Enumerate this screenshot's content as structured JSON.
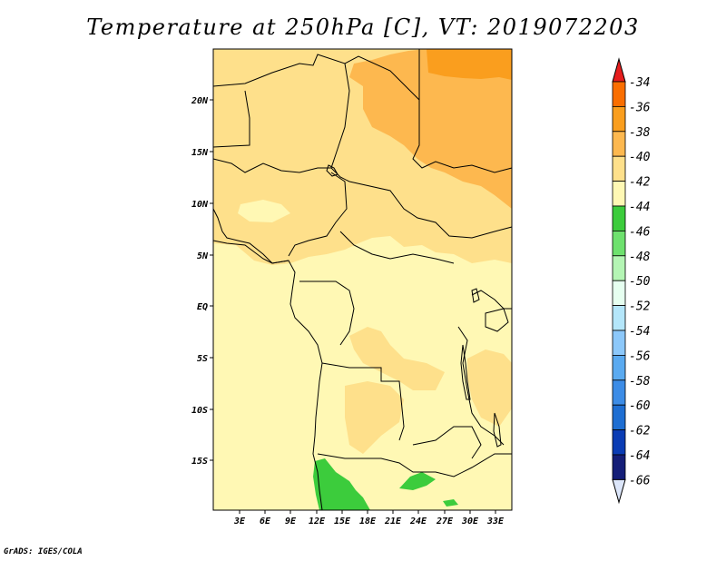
{
  "title": "Temperature at 250hPa [C], VT: 2019072203",
  "footer": "GrADS: IGES/COLA",
  "map": {
    "lat_ticks": [
      "20N",
      "15N",
      "10N",
      "5N",
      "EQ",
      "5S",
      "10S",
      "15S"
    ],
    "lon_ticks": [
      "3E",
      "6E",
      "9E",
      "12E",
      "15E",
      "18E",
      "21E",
      "24E",
      "27E",
      "30E",
      "33E"
    ],
    "colors": {
      "lightest_yellow": "#fff8b4",
      "light_orange": "#fee08b",
      "orange": "#fdb84f",
      "dark_orange": "#fa9e1e",
      "green": "#3ccc3c",
      "border": "#000000"
    }
  },
  "colorbar": {
    "labels": [
      "-34",
      "-36",
      "-38",
      "-40",
      "-42",
      "-44",
      "-46",
      "-48",
      "-50",
      "-52",
      "-54",
      "-56",
      "-58",
      "-60",
      "-62",
      "-64",
      "-66"
    ],
    "colors": [
      "#f03c1e",
      "#fa6e00",
      "#fa9e1e",
      "#fdb84f",
      "#fee08b",
      "#fff8b4",
      "#3ccc3c",
      "#6ee16e",
      "#b4f5b4",
      "#e6fff0",
      "#b4e6fa",
      "#8cc8fa",
      "#5aaaf0",
      "#3c8ce6",
      "#1e6ed2",
      "#0a3cb4",
      "#141e78"
    ],
    "top_color": "#e61e1e",
    "bottom_color": "#dce6fa"
  }
}
